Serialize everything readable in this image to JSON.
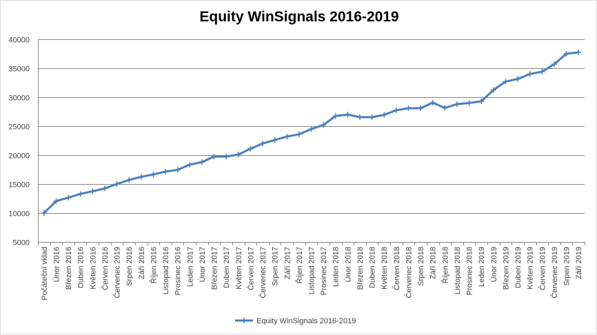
{
  "chart_data": {
    "type": "line",
    "title": "Equity WinSignals 2016-2019",
    "xlabel": "",
    "ylabel": "",
    "ylim": [
      5000,
      40000
    ],
    "yticks": [
      5000,
      10000,
      15000,
      20000,
      25000,
      30000,
      35000,
      40000
    ],
    "grid": true,
    "legend_position": "bottom",
    "categories": [
      "Počáteční vklad",
      "Únor 2016",
      "Březen 2016",
      "Duben 2016",
      "Květen 2016",
      "Červen 2016",
      "Červenec 2019",
      "Srpen 2016",
      "Září 2016",
      "Říjen 2016",
      "Listopad 2016",
      "Prosinec 2016",
      "Leden 2017",
      "Únor 2017",
      "Březen 2017",
      "Duben 2017",
      "Květen 2017",
      "Červen 2017",
      "Červenec 2017",
      "Srpen 2017",
      "Září 2017",
      "Říjen 2017",
      "Listopad 2017",
      "Prosinec 2017",
      "Leden 2018",
      "Únor 2018",
      "Březen 2018",
      "Duben 2018",
      "Květen 2018",
      "Červen 2018",
      "Červenec 2018",
      "Srpen 2018",
      "Září 2018",
      "Říjen 2018",
      "Listopad 2018",
      "Prosinec 2018",
      "Leden 2019",
      "Únor 2019",
      "Březen 2019",
      "Duben 2019",
      "Květen 2019",
      "Červen 2019",
      "Červenec 2019",
      "Srpen 2019",
      "Září 2019"
    ],
    "series": [
      {
        "name": "Equity WinSignals 2016-2019",
        "color": "#4a7ebb",
        "values": [
          10000,
          12050,
          12650,
          13300,
          13750,
          14250,
          15000,
          15700,
          16250,
          16650,
          17150,
          17450,
          18350,
          18800,
          19750,
          19750,
          20100,
          21100,
          22000,
          22600,
          23200,
          23600,
          24500,
          25200,
          26750,
          27000,
          26550,
          26550,
          26950,
          27750,
          28100,
          28100,
          29050,
          28150,
          28800,
          29000,
          29300,
          31250,
          32700,
          33150,
          34000,
          34400,
          35700,
          37500,
          37750
        ]
      }
    ]
  }
}
